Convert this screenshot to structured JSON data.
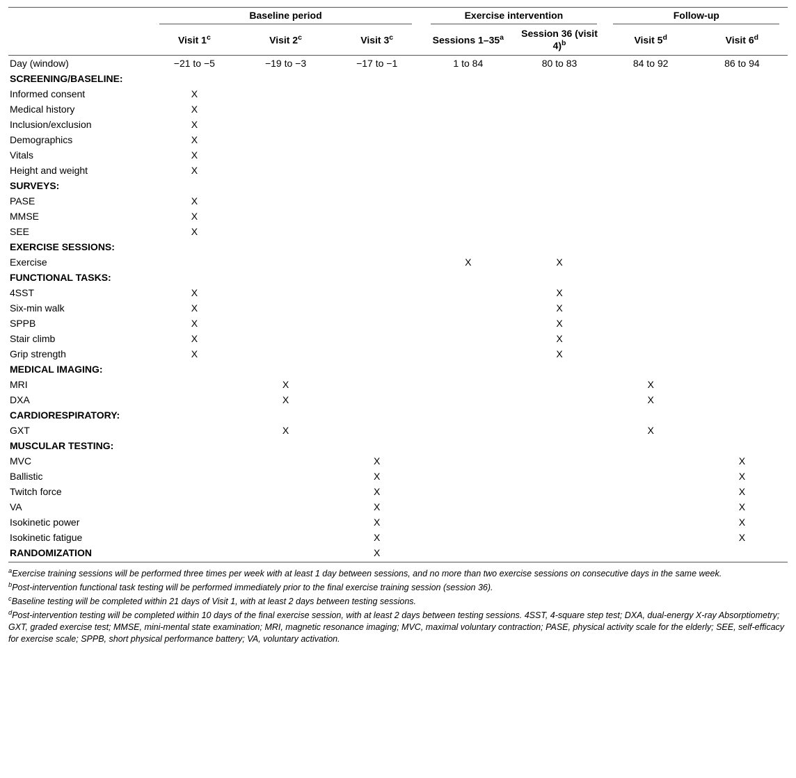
{
  "groups": [
    {
      "label": "Baseline period",
      "span": 3
    },
    {
      "label": "Exercise intervention",
      "span": 2
    },
    {
      "label": "Follow-up",
      "span": 2
    }
  ],
  "columns": [
    {
      "label": "Visit 1",
      "sup": "c"
    },
    {
      "label": "Visit 2",
      "sup": "c"
    },
    {
      "label": "Visit 3",
      "sup": "c"
    },
    {
      "label": "Sessions 1–35",
      "sup": "a"
    },
    {
      "label": "Session 36 (visit 4)",
      "sup": "b"
    },
    {
      "label": "Visit 5",
      "sup": "d"
    },
    {
      "label": "Visit 6",
      "sup": "d"
    }
  ],
  "day_label": "Day (window)",
  "day_values": [
    "−21 to −5",
    "−19 to −3",
    "−17 to −1",
    "1 to 84",
    "80 to 83",
    "84 to 92",
    "86 to 94"
  ],
  "sections": [
    {
      "title": "SCREENING/BASELINE:",
      "rows": [
        {
          "label": "Informed consent",
          "marks": [
            1,
            0,
            0,
            0,
            0,
            0,
            0
          ]
        },
        {
          "label": "Medical history",
          "marks": [
            1,
            0,
            0,
            0,
            0,
            0,
            0
          ]
        },
        {
          "label": "Inclusion/exclusion",
          "marks": [
            1,
            0,
            0,
            0,
            0,
            0,
            0
          ]
        },
        {
          "label": "Demographics",
          "marks": [
            1,
            0,
            0,
            0,
            0,
            0,
            0
          ]
        },
        {
          "label": "Vitals",
          "marks": [
            1,
            0,
            0,
            0,
            0,
            0,
            0
          ]
        },
        {
          "label": "Height and weight",
          "marks": [
            1,
            0,
            0,
            0,
            0,
            0,
            0
          ]
        }
      ]
    },
    {
      "title": "SURVEYS:",
      "rows": [
        {
          "label": "PASE",
          "marks": [
            1,
            0,
            0,
            0,
            0,
            0,
            0
          ]
        },
        {
          "label": "MMSE",
          "marks": [
            1,
            0,
            0,
            0,
            0,
            0,
            0
          ]
        },
        {
          "label": "SEE",
          "marks": [
            1,
            0,
            0,
            0,
            0,
            0,
            0
          ]
        }
      ]
    },
    {
      "title": "EXERCISE SESSIONS:",
      "rows": [
        {
          "label": "Exercise",
          "marks": [
            0,
            0,
            0,
            1,
            1,
            0,
            0
          ]
        }
      ]
    },
    {
      "title": "FUNCTIONAL TASKS:",
      "rows": [
        {
          "label": "4SST",
          "marks": [
            1,
            0,
            0,
            0,
            1,
            0,
            0
          ]
        },
        {
          "label": "Six-min walk",
          "marks": [
            1,
            0,
            0,
            0,
            1,
            0,
            0
          ]
        },
        {
          "label": "SPPB",
          "marks": [
            1,
            0,
            0,
            0,
            1,
            0,
            0
          ]
        },
        {
          "label": "Stair climb",
          "marks": [
            1,
            0,
            0,
            0,
            1,
            0,
            0
          ]
        },
        {
          "label": "Grip strength",
          "marks": [
            1,
            0,
            0,
            0,
            1,
            0,
            0
          ]
        }
      ]
    },
    {
      "title": "MEDICAL IMAGING:",
      "rows": [
        {
          "label": "MRI",
          "marks": [
            0,
            1,
            0,
            0,
            0,
            1,
            0
          ]
        },
        {
          "label": "DXA",
          "marks": [
            0,
            1,
            0,
            0,
            0,
            1,
            0
          ]
        }
      ]
    },
    {
      "title": "CARDIORESPIRATORY:",
      "rows": [
        {
          "label": "GXT",
          "marks": [
            0,
            1,
            0,
            0,
            0,
            1,
            0
          ]
        }
      ]
    },
    {
      "title": "MUSCULAR TESTING:",
      "rows": [
        {
          "label": "MVC",
          "marks": [
            0,
            0,
            1,
            0,
            0,
            0,
            1
          ]
        },
        {
          "label": "Ballistic",
          "marks": [
            0,
            0,
            1,
            0,
            0,
            0,
            1
          ]
        },
        {
          "label": "Twitch force",
          "marks": [
            0,
            0,
            1,
            0,
            0,
            0,
            1
          ]
        },
        {
          "label": "VA",
          "marks": [
            0,
            0,
            1,
            0,
            0,
            0,
            1
          ]
        },
        {
          "label": "Isokinetic power",
          "marks": [
            0,
            0,
            1,
            0,
            0,
            0,
            1
          ]
        },
        {
          "label": "Isokinetic fatigue",
          "marks": [
            0,
            0,
            1,
            0,
            0,
            0,
            1
          ]
        }
      ]
    },
    {
      "title": "RANDOMIZATION",
      "rows": [],
      "title_marks": [
        0,
        0,
        1,
        0,
        0,
        0,
        0
      ]
    }
  ],
  "footnotes": [
    {
      "sup": "a",
      "text": "Exercise training sessions will be performed three times per week with at least 1 day between sessions, and no more than two exercise sessions on consecutive days in the same week."
    },
    {
      "sup": "b",
      "text": "Post-intervention functional task testing will be performed immediately prior to the final exercise training session (session 36)."
    },
    {
      "sup": "c",
      "text": "Baseline testing will be completed within 21 days of Visit 1, with at least 2 days between testing sessions."
    },
    {
      "sup": "d",
      "text": "Post-intervention testing will be completed within 10 days of the final exercise session, with at least 2 days between testing sessions. 4SST, 4-square step test; DXA, dual-energy X-ray Absorptiometry; GXT, graded exercise test; MMSE, mini-mental state examination; MRI, magnetic resonance imaging; MVC, maximal voluntary contraction; PASE, physical activity scale for the elderly; SEE, self-efficacy for exercise scale; SPPB, short physical performance battery; VA, voluntary activation."
    }
  ],
  "mark_glyph": "X"
}
